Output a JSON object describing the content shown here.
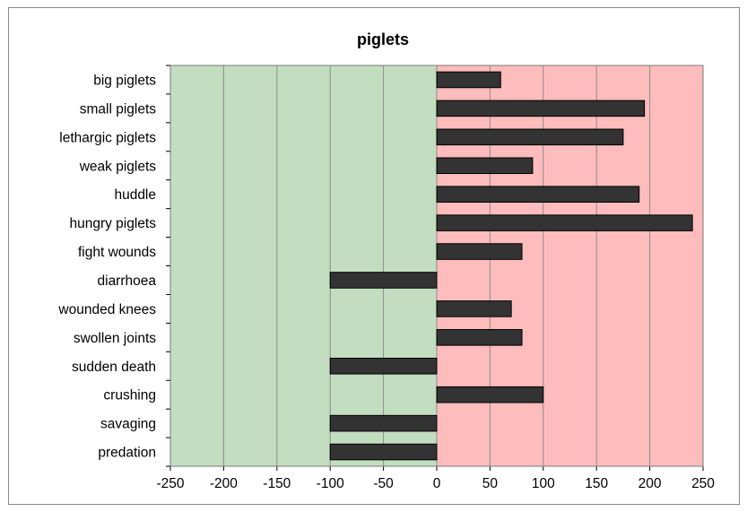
{
  "chart_data": {
    "type": "bar",
    "orientation": "horizontal",
    "title": "piglets",
    "xlabel": "",
    "ylabel": "",
    "categories": [
      "big piglets",
      "small piglets",
      "lethargic piglets",
      "weak piglets",
      "huddle",
      "hungry piglets",
      "fight wounds",
      "diarrhoea",
      "wounded knees",
      "swollen joints",
      "sudden death",
      "crushing",
      "savaging",
      "predation"
    ],
    "values": [
      60,
      195,
      175,
      90,
      190,
      240,
      80,
      -100,
      70,
      80,
      -100,
      100,
      -100,
      -100
    ],
    "xlim": [
      -250,
      250
    ],
    "xticks": [
      "-250",
      "-200",
      "-150",
      "-100",
      "-50",
      "0",
      "50",
      "100",
      "150",
      "200",
      "250"
    ],
    "grid": "vertical",
    "legend": "none",
    "colors": {
      "bar": "#333333",
      "bar_stroke": "#000000",
      "negative_region": "#c2ddc0",
      "positive_region": "#ffbcbc",
      "gridline": "#8c8c8c"
    }
  }
}
